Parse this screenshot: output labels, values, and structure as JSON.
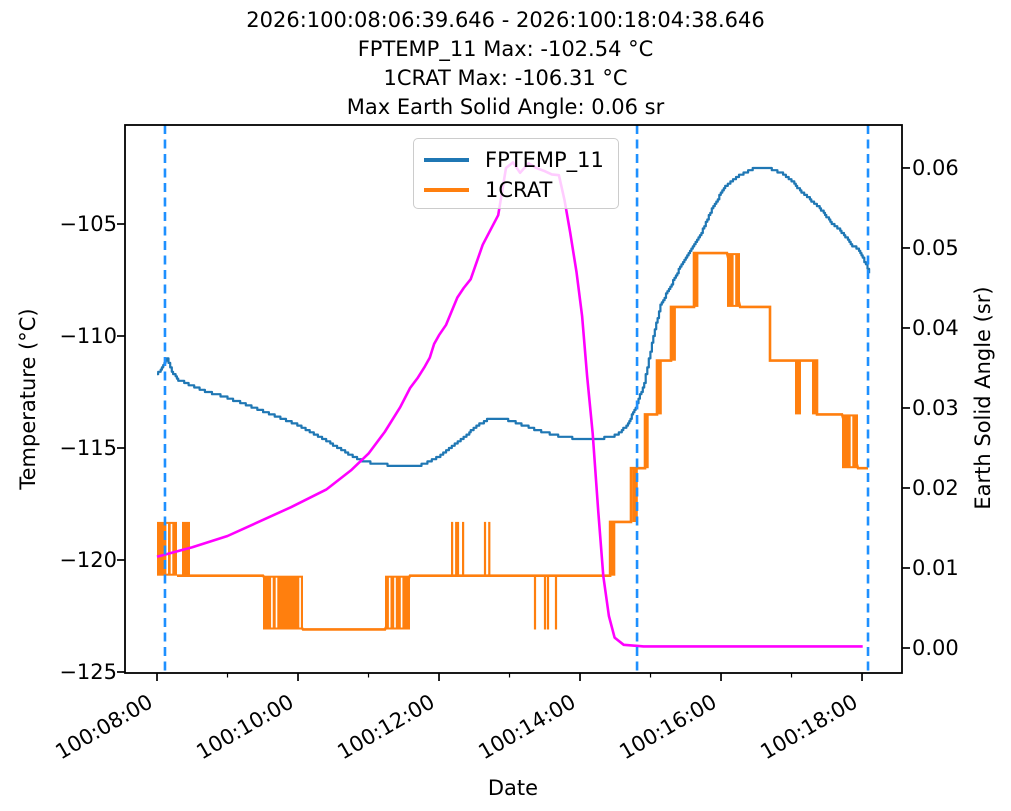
{
  "title_lines": [
    "2026:100:08:06:39.646 - 2026:100:18:04:38.646",
    "FPTEMP_11 Max: -102.54 °C",
    "1CRAT Max: -106.31 °C",
    "Max Earth Solid Angle: 0.06 sr"
  ],
  "legend": {
    "entries": [
      {
        "label": "FPTEMP_11",
        "color": "#1f77b4"
      },
      {
        "label": "1CRAT",
        "color": "#ff7f0e"
      }
    ]
  },
  "chart_data": {
    "type": "line",
    "x_axis": {
      "label": "Date",
      "units": "hours since 2026:100:08:00:00",
      "xlim": [
        -0.454,
        10.567
      ],
      "major_ticks": [
        {
          "hours": 0,
          "label": "100:08:00"
        },
        {
          "hours": 2,
          "label": "100:10:00"
        },
        {
          "hours": 4,
          "label": "100:12:00"
        },
        {
          "hours": 6,
          "label": "100:14:00"
        },
        {
          "hours": 8,
          "label": "100:16:00"
        },
        {
          "hours": 10,
          "label": "100:18:00"
        }
      ],
      "minor_ticks_hours": [
        1,
        3,
        5,
        7,
        9
      ]
    },
    "y_left": {
      "label": "Temperature (°C)",
      "lim": [
        -125.045,
        -100.58
      ],
      "ticks": [
        {
          "value": -105,
          "label": "−105"
        },
        {
          "value": -110,
          "label": "−110"
        },
        {
          "value": -115,
          "label": "−115"
        },
        {
          "value": -120,
          "label": "−120"
        },
        {
          "value": -125,
          "label": "−125"
        }
      ]
    },
    "y_right": {
      "label": "Earth Solid Angle (sr)",
      "lim": [
        -0.003125,
        0.06537
      ],
      "ticks": [
        {
          "value": 0.0,
          "label": "0.00"
        },
        {
          "value": 0.01,
          "label": "0.01"
        },
        {
          "value": 0.02,
          "label": "0.02"
        },
        {
          "value": 0.03,
          "label": "0.03"
        },
        {
          "value": 0.04,
          "label": "0.04"
        },
        {
          "value": 0.05,
          "label": "0.05"
        },
        {
          "value": 0.06,
          "label": "0.06"
        }
      ]
    },
    "vlines": {
      "color": "#1e90ff",
      "style": "dashed",
      "width": 2.6,
      "hours": [
        0.113,
        6.809,
        10.085
      ]
    },
    "series": [
      {
        "name": "FPTEMP_11",
        "color": "#1f77b4",
        "axis": "left",
        "style": "quantized-line",
        "line_width": 2.2,
        "quantize_step_c": 0.1,
        "points": [
          [
            0.0,
            -111.7
          ],
          [
            0.07,
            -111.43
          ],
          [
            0.14,
            -111.05
          ],
          [
            0.21,
            -111.61
          ],
          [
            0.3,
            -111.96
          ],
          [
            0.47,
            -112.19
          ],
          [
            0.68,
            -112.46
          ],
          [
            0.96,
            -112.72
          ],
          [
            1.32,
            -113.13
          ],
          [
            1.67,
            -113.57
          ],
          [
            2.03,
            -114.02
          ],
          [
            2.38,
            -114.64
          ],
          [
            2.67,
            -115.18
          ],
          [
            2.88,
            -115.54
          ],
          [
            3.09,
            -115.71
          ],
          [
            3.45,
            -115.8
          ],
          [
            3.73,
            -115.76
          ],
          [
            3.94,
            -115.49
          ],
          [
            4.16,
            -115.0
          ],
          [
            4.37,
            -114.46
          ],
          [
            4.55,
            -113.97
          ],
          [
            4.68,
            -113.75
          ],
          [
            4.94,
            -113.71
          ],
          [
            5.15,
            -113.93
          ],
          [
            5.43,
            -114.24
          ],
          [
            5.69,
            -114.46
          ],
          [
            5.93,
            -114.58
          ],
          [
            6.28,
            -114.58
          ],
          [
            6.45,
            -114.5
          ],
          [
            6.57,
            -114.3
          ],
          [
            6.68,
            -113.9
          ],
          [
            6.79,
            -113.2
          ],
          [
            6.91,
            -112.1
          ],
          [
            7.02,
            -110.3
          ],
          [
            7.14,
            -108.6
          ],
          [
            7.28,
            -107.8
          ],
          [
            7.42,
            -106.9
          ],
          [
            7.56,
            -106.2
          ],
          [
            7.7,
            -105.5
          ],
          [
            7.89,
            -104.2
          ],
          [
            8.04,
            -103.4
          ],
          [
            8.17,
            -103.0
          ],
          [
            8.34,
            -102.7
          ],
          [
            8.45,
            -102.54
          ],
          [
            8.7,
            -102.53
          ],
          [
            8.84,
            -102.7
          ],
          [
            8.98,
            -103.0
          ],
          [
            9.12,
            -103.5
          ],
          [
            9.26,
            -103.9
          ],
          [
            9.4,
            -104.3
          ],
          [
            9.55,
            -104.9
          ],
          [
            9.69,
            -105.3
          ],
          [
            9.8,
            -105.7
          ],
          [
            9.86,
            -106.0
          ],
          [
            9.94,
            -106.1
          ],
          [
            10.01,
            -106.5
          ],
          [
            10.1,
            -107.2
          ]
        ]
      },
      {
        "name": "1CRAT",
        "color": "#ff7f0e",
        "axis": "left",
        "style": "steps",
        "line_width": 2.6,
        "flats": [
          [
            0.284,
            0.355,
            -120.7
          ],
          [
            0.468,
            1.504,
            -120.7
          ],
          [
            2.071,
            3.234,
            -123.1
          ],
          [
            3.589,
            6.426,
            -120.7
          ],
          [
            6.426,
            6.723,
            -118.3
          ],
          [
            6.723,
            6.922,
            -115.9
          ],
          [
            6.922,
            7.092,
            -113.5
          ],
          [
            7.092,
            7.291,
            -111.1
          ],
          [
            7.291,
            7.617,
            -108.7
          ],
          [
            7.617,
            8.085,
            -106.3
          ],
          [
            8.27,
            8.695,
            -108.7
          ],
          [
            8.695,
            9.362,
            -111.1
          ],
          [
            9.362,
            9.716,
            -113.5
          ],
          [
            9.943,
            10.085,
            -115.9
          ]
        ],
        "blocks": [
          [
            0.0,
            0.284,
            -120.7,
            -118.3
          ],
          [
            0.355,
            0.468,
            -120.7,
            -118.3
          ],
          [
            1.504,
            2.071,
            -123.1,
            -120.7
          ],
          [
            3.234,
            3.589,
            -123.1,
            -120.7
          ],
          [
            6.426,
            6.5,
            -120.7,
            -118.3
          ],
          [
            6.74,
            6.82,
            -118.3,
            -115.9
          ],
          [
            6.922,
            6.975,
            -115.9,
            -113.5
          ],
          [
            7.092,
            7.16,
            -113.5,
            -111.1
          ],
          [
            7.291,
            7.36,
            -111.1,
            -108.7
          ],
          [
            7.617,
            7.68,
            -108.7,
            -106.3
          ],
          [
            8.085,
            8.27,
            -108.7,
            -106.3
          ],
          [
            9.05,
            9.135,
            -113.5,
            -111.1
          ],
          [
            9.291,
            9.362,
            -113.5,
            -111.1
          ],
          [
            9.716,
            9.943,
            -115.9,
            -113.5
          ]
        ],
        "slits": [
          [
            0.145,
            -120.7,
            -118.3
          ],
          [
            0.205,
            -120.7,
            -118.3
          ],
          [
            1.63,
            -123.1,
            -120.7
          ],
          [
            1.695,
            -123.1,
            -120.7
          ],
          [
            2.03,
            -123.1,
            -120.7
          ],
          [
            3.3,
            -123.1,
            -120.7
          ],
          [
            3.375,
            -123.1,
            -120.7
          ],
          [
            3.47,
            -123.1,
            -120.7
          ],
          [
            8.19,
            -108.7,
            -106.3
          ],
          [
            9.85,
            -115.9,
            -113.5
          ]
        ],
        "spikes": [
          [
            4.185,
            -120.7,
            -118.3,
            2.2
          ],
          [
            4.256,
            -120.7,
            -118.3,
            4.0
          ],
          [
            4.341,
            -120.7,
            -118.3,
            2.2
          ],
          [
            4.652,
            -120.7,
            -118.3,
            2.2
          ],
          [
            4.713,
            -120.7,
            -118.3,
            2.2
          ],
          [
            5.362,
            -120.7,
            -123.1,
            2.2
          ],
          [
            5.504,
            -120.7,
            -123.1,
            2.2
          ],
          [
            5.546,
            -120.7,
            -123.1,
            2.2
          ],
          [
            5.66,
            -120.7,
            -123.1,
            2.2
          ]
        ]
      },
      {
        "name": "Earth Solid Angle",
        "color": "#ff00ff",
        "axis": "right",
        "style": "line",
        "line_width": 2.6,
        "points": [
          [
            0.0,
            0.0114
          ],
          [
            0.5,
            0.0126
          ],
          [
            1.0,
            0.014
          ],
          [
            1.4,
            0.0156
          ],
          [
            1.9,
            0.0176
          ],
          [
            2.4,
            0.0198
          ],
          [
            2.75,
            0.0222
          ],
          [
            3.0,
            0.0243
          ],
          [
            3.23,
            0.027
          ],
          [
            3.45,
            0.0301
          ],
          [
            3.59,
            0.0325
          ],
          [
            3.7,
            0.0338
          ],
          [
            3.8,
            0.0352
          ],
          [
            3.87,
            0.0363
          ],
          [
            3.93,
            0.038
          ],
          [
            4.0,
            0.0391
          ],
          [
            4.1,
            0.0404
          ],
          [
            4.26,
            0.0438
          ],
          [
            4.35,
            0.045
          ],
          [
            4.45,
            0.0461
          ],
          [
            4.62,
            0.0504
          ],
          [
            4.75,
            0.0526
          ],
          [
            4.84,
            0.0541
          ],
          [
            4.95,
            0.06
          ],
          [
            5.05,
            0.0607
          ],
          [
            5.15,
            0.0594
          ],
          [
            5.27,
            0.0606
          ],
          [
            5.38,
            0.06
          ],
          [
            5.5,
            0.0596
          ],
          [
            5.6,
            0.0592
          ],
          [
            5.7,
            0.0591
          ],
          [
            5.78,
            0.056
          ],
          [
            5.86,
            0.052
          ],
          [
            5.95,
            0.047
          ],
          [
            6.03,
            0.0415
          ],
          [
            6.1,
            0.034
          ],
          [
            6.18,
            0.0268
          ],
          [
            6.26,
            0.017
          ],
          [
            6.33,
            0.009
          ],
          [
            6.41,
            0.004
          ],
          [
            6.49,
            0.0013
          ],
          [
            6.62,
            0.0004
          ],
          [
            6.9,
            0.0002
          ],
          [
            10.01,
            0.0002
          ]
        ]
      }
    ]
  }
}
